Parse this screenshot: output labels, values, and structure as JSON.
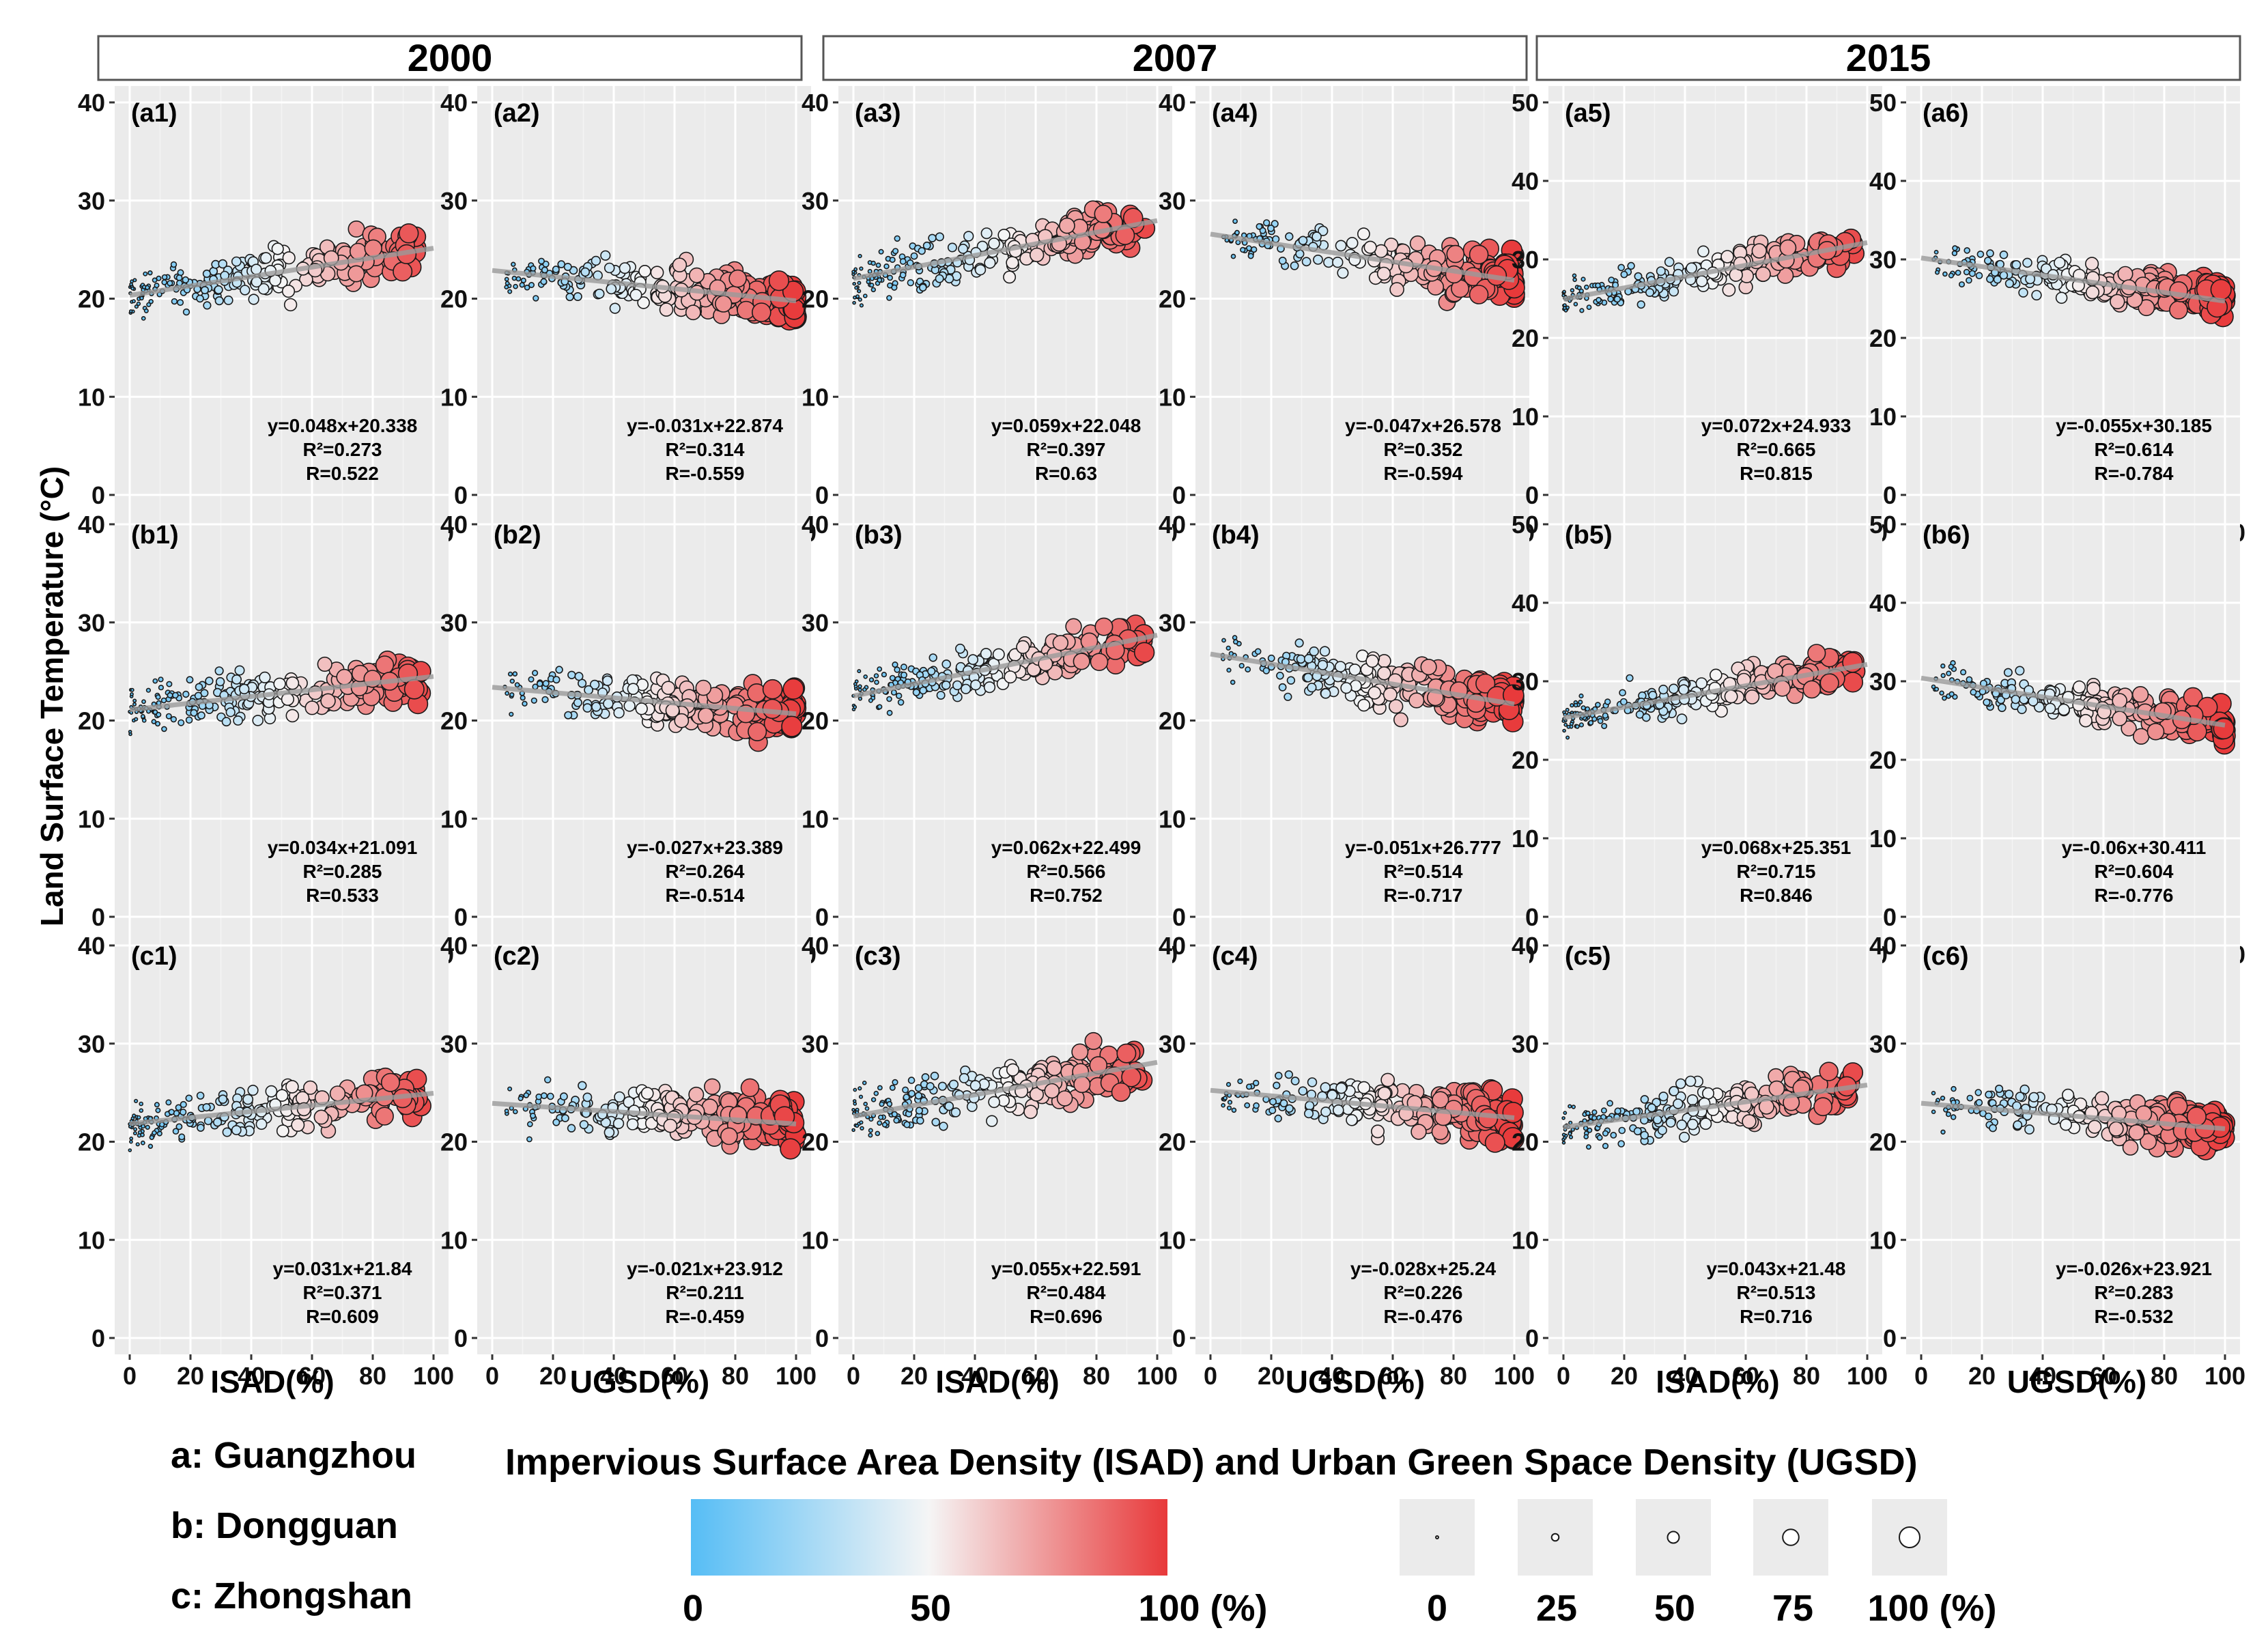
{
  "chart_data": {
    "type": "scatter",
    "y_axis_label": "Land Surface Temperature (°C)",
    "year_headers": [
      "2000",
      "2007",
      "2015"
    ],
    "x_axis_labels": [
      "ISAD(%)",
      "UGSD(%)",
      "ISAD(%)",
      "UGSD(%)",
      "ISAD(%)",
      "UGSD(%)"
    ],
    "x_range": [
      0,
      100
    ],
    "x_ticks": [
      0,
      20,
      40,
      60,
      80,
      100
    ],
    "rows": [
      {
        "city": "Guangzhou",
        "panels": [
          {
            "label": "(a1)",
            "year": "2000",
            "var": "ISAD",
            "slope": 0.048,
            "intercept": 20.338,
            "ylim": [
              0,
              40
            ],
            "yticks": [
              0,
              10,
              20,
              30,
              40
            ],
            "eq": "y=0.048x+20.338",
            "r2": "R²=0.273",
            "r": "R=0.522"
          },
          {
            "label": "(a2)",
            "year": "2000",
            "var": "UGSD",
            "slope": -0.031,
            "intercept": 22.874,
            "ylim": [
              0,
              40
            ],
            "yticks": [
              0,
              10,
              20,
              30,
              40
            ],
            "eq": "y=-0.031x+22.874",
            "r2": "R²=0.314",
            "r": "R=-0.559"
          },
          {
            "label": "(a3)",
            "year": "2007",
            "var": "ISAD",
            "slope": 0.059,
            "intercept": 22.048,
            "ylim": [
              0,
              40
            ],
            "yticks": [
              0,
              10,
              20,
              30,
              40
            ],
            "eq": "y=0.059x+22.048",
            "r2": "R²=0.397",
            "r": "R=0.63"
          },
          {
            "label": "(a4)",
            "year": "2007",
            "var": "UGSD",
            "slope": -0.047,
            "intercept": 26.578,
            "ylim": [
              0,
              40
            ],
            "yticks": [
              0,
              10,
              20,
              30,
              40
            ],
            "eq": "y=-0.047x+26.578",
            "r2": "R²=0.352",
            "r": "R=-0.594"
          },
          {
            "label": "(a5)",
            "year": "2015",
            "var": "ISAD",
            "slope": 0.072,
            "intercept": 24.933,
            "ylim": [
              0,
              50
            ],
            "yticks": [
              0,
              10,
              20,
              30,
              40,
              50
            ],
            "eq": "y=0.072x+24.933",
            "r2": "R²=0.665",
            "r": "R=0.815"
          },
          {
            "label": "(a6)",
            "year": "2015",
            "var": "UGSD",
            "slope": -0.055,
            "intercept": 30.185,
            "ylim": [
              0,
              50
            ],
            "yticks": [
              0,
              10,
              20,
              30,
              40,
              50
            ],
            "eq": "y=-0.055x+30.185",
            "r2": "R²=0.614",
            "r": "R=-0.784"
          }
        ]
      },
      {
        "city": "Dongguan",
        "panels": [
          {
            "label": "(b1)",
            "year": "2000",
            "var": "ISAD",
            "slope": 0.034,
            "intercept": 21.091,
            "ylim": [
              0,
              40
            ],
            "yticks": [
              0,
              10,
              20,
              30,
              40
            ],
            "eq": "y=0.034x+21.091",
            "r2": "R²=0.285",
            "r": "R=0.533"
          },
          {
            "label": "(b2)",
            "year": "2000",
            "var": "UGSD",
            "slope": -0.027,
            "intercept": 23.389,
            "ylim": [
              0,
              40
            ],
            "yticks": [
              0,
              10,
              20,
              30,
              40
            ],
            "eq": "y=-0.027x+23.389",
            "r2": "R²=0.264",
            "r": "R=-0.514"
          },
          {
            "label": "(b3)",
            "year": "2007",
            "var": "ISAD",
            "slope": 0.062,
            "intercept": 22.499,
            "ylim": [
              0,
              40
            ],
            "yticks": [
              0,
              10,
              20,
              30,
              40
            ],
            "eq": "y=0.062x+22.499",
            "r2": "R²=0.566",
            "r": "R=0.752"
          },
          {
            "label": "(b4)",
            "year": "2007",
            "var": "UGSD",
            "slope": -0.051,
            "intercept": 26.777,
            "ylim": [
              0,
              40
            ],
            "yticks": [
              0,
              10,
              20,
              30,
              40
            ],
            "eq": "y=-0.051x+26.777",
            "r2": "R²=0.514",
            "r": "R=-0.717"
          },
          {
            "label": "(b5)",
            "year": "2015",
            "var": "ISAD",
            "slope": 0.068,
            "intercept": 25.351,
            "ylim": [
              0,
              50
            ],
            "yticks": [
              0,
              10,
              20,
              30,
              40,
              50
            ],
            "eq": "y=0.068x+25.351",
            "r2": "R²=0.715",
            "r": "R=0.846"
          },
          {
            "label": "(b6)",
            "year": "2015",
            "var": "UGSD",
            "slope": -0.06,
            "intercept": 30.411,
            "ylim": [
              0,
              50
            ],
            "yticks": [
              0,
              10,
              20,
              30,
              40,
              50
            ],
            "eq": "y=-0.06x+30.411",
            "r2": "R²=0.604",
            "r": "R=-0.776"
          }
        ]
      },
      {
        "city": "Zhongshan",
        "panels": [
          {
            "label": "(c1)",
            "year": "2000",
            "var": "ISAD",
            "slope": 0.031,
            "intercept": 21.84,
            "ylim": [
              0,
              40
            ],
            "yticks": [
              0,
              10,
              20,
              30,
              40
            ],
            "eq": "y=0.031x+21.84",
            "r2": "R²=0.371",
            "r": "R=0.609"
          },
          {
            "label": "(c2)",
            "year": "2000",
            "var": "UGSD",
            "slope": -0.021,
            "intercept": 23.912,
            "ylim": [
              0,
              40
            ],
            "yticks": [
              0,
              10,
              20,
              30,
              40
            ],
            "eq": "y=-0.021x+23.912",
            "r2": "R²=0.211",
            "r": "R=-0.459"
          },
          {
            "label": "(c3)",
            "year": "2007",
            "var": "ISAD",
            "slope": 0.055,
            "intercept": 22.591,
            "ylim": [
              0,
              40
            ],
            "yticks": [
              0,
              10,
              20,
              30,
              40
            ],
            "eq": "y=0.055x+22.591",
            "r2": "R²=0.484",
            "r": "R=0.696"
          },
          {
            "label": "(c4)",
            "year": "2007",
            "var": "UGSD",
            "slope": -0.028,
            "intercept": 25.24,
            "ylim": [
              0,
              40
            ],
            "yticks": [
              0,
              10,
              20,
              30,
              40
            ],
            "eq": "y=-0.028x+25.24",
            "r2": "R²=0.226",
            "r": "R=-0.476"
          },
          {
            "label": "(c5)",
            "year": "2015",
            "var": "ISAD",
            "slope": 0.043,
            "intercept": 21.48,
            "ylim": [
              0,
              40
            ],
            "yticks": [
              0,
              10,
              20,
              30,
              40
            ],
            "eq": "y=0.043x+21.48",
            "r2": "R²=0.513",
            "r": "R=0.716"
          },
          {
            "label": "(c6)",
            "year": "2015",
            "var": "UGSD",
            "slope": -0.026,
            "intercept": 23.921,
            "ylim": [
              0,
              40
            ],
            "yticks": [
              0,
              10,
              20,
              30,
              40
            ],
            "eq": "y=-0.026x+23.921",
            "r2": "R²=0.283",
            "r": "R=-0.532"
          }
        ]
      }
    ],
    "legend": {
      "cities": [
        "a: Guangzhou",
        "b: Dongguan",
        "c: Zhongshan"
      ],
      "title": "Impervious Surface Area Density (ISAD) and Urban Green Space Density (UGSD)",
      "color_ticks": [
        "0",
        "50",
        "100 (%)"
      ],
      "size_ticks": [
        "0",
        "25",
        "50",
        "75",
        "100 (%)"
      ],
      "size_values": [
        0,
        25,
        50,
        75,
        100
      ],
      "colors": {
        "low": "#56bdf5",
        "mid": "#f5f5f5",
        "high": "#e8393a"
      }
    }
  }
}
